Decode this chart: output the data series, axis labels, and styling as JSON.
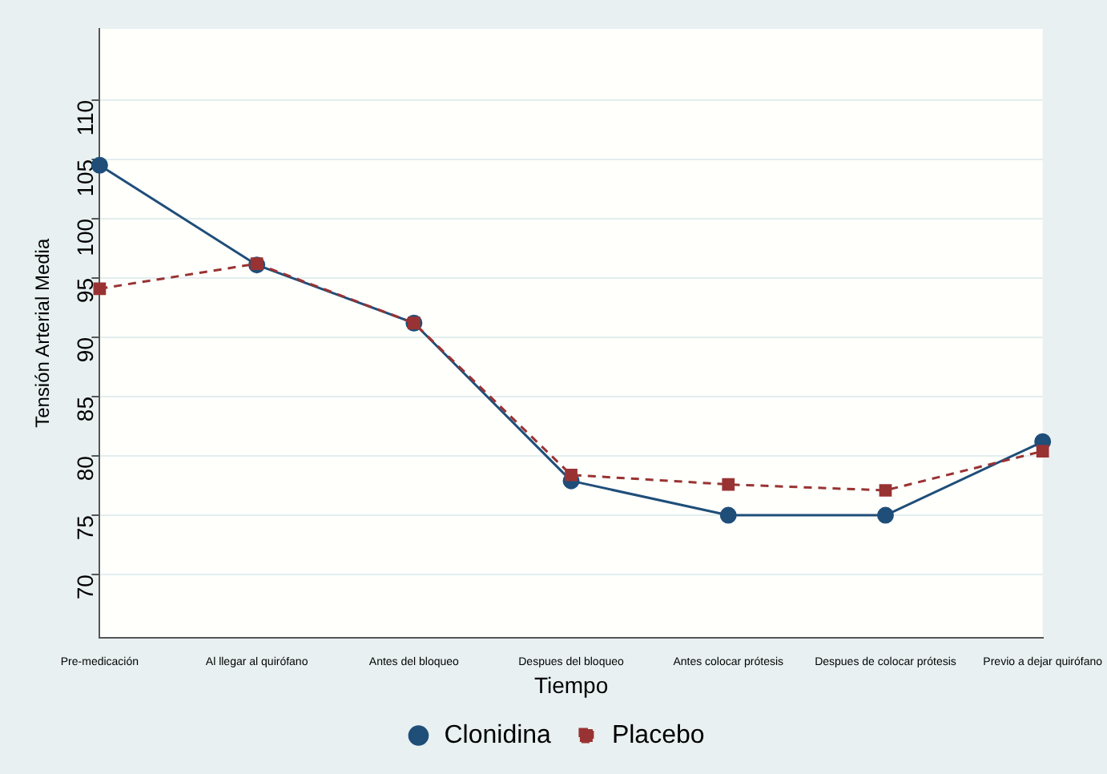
{
  "chart_data": {
    "type": "line",
    "xlabel": "Tiempo",
    "ylabel": "Tensión Arterial Media",
    "categories": [
      "Pre-medicación",
      "Al llegar al quirófano",
      "Antes del bloqueo",
      "Despues del bloqueo",
      "Antes colocar prótesis",
      "Despues de colocar prótesis",
      "Previo a dejar quirófano"
    ],
    "series": [
      {
        "name": "Clonidina",
        "color": "#1f4e79",
        "marker": "circle",
        "line_style": "solid",
        "values": [
          104.5,
          96.1,
          91.2,
          77.9,
          75.0,
          75.0,
          81.2
        ]
      },
      {
        "name": "Placebo",
        "color": "#993333",
        "marker": "square",
        "line_style": "dashed",
        "values": [
          94.1,
          96.2,
          91.2,
          78.4,
          77.6,
          77.1,
          80.4
        ]
      }
    ],
    "ylim": [
      64.7,
      116
    ],
    "yticks": [
      70,
      75,
      80,
      85,
      90,
      95,
      100,
      105,
      110
    ],
    "grid": "y",
    "legend": "bottom"
  }
}
